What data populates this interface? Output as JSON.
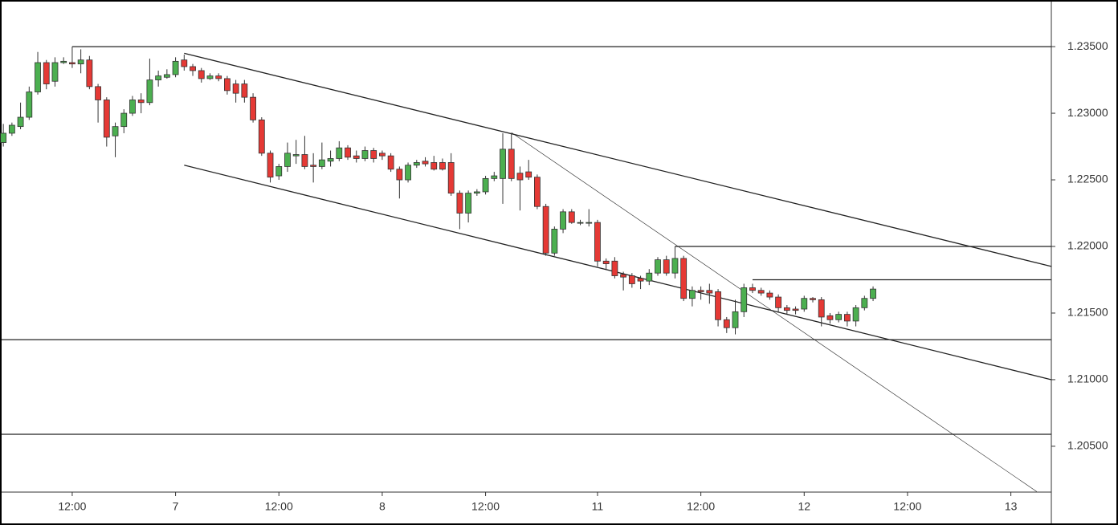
{
  "chart_data": {
    "type": "candlestick",
    "up_color": "#4caf50",
    "down_color": "#e53935",
    "x": [
      0,
      1,
      2,
      3,
      4,
      5,
      6,
      7,
      8,
      9,
      10,
      11,
      12,
      13,
      14,
      15,
      16,
      17,
      18,
      19,
      20,
      21,
      22,
      23,
      24,
      25,
      26,
      27,
      28,
      29,
      30,
      31,
      32,
      33,
      34,
      35,
      36,
      37,
      38,
      39,
      40,
      41,
      42,
      43,
      44,
      45,
      46,
      47,
      48,
      49,
      50,
      51,
      52,
      53,
      54,
      55,
      56,
      57,
      58,
      59,
      60,
      61,
      62,
      63,
      64,
      65,
      66,
      67,
      68,
      69,
      70,
      71,
      72,
      73,
      74,
      75,
      76,
      77,
      78,
      79,
      80,
      81,
      82,
      83,
      84,
      85,
      86,
      87,
      88,
      89,
      90,
      91,
      92,
      93,
      94,
      95,
      96,
      97,
      98,
      99,
      100,
      101
    ],
    "open": [
      1.2278,
      1.2285,
      1.229,
      1.2297,
      1.2316,
      1.2338,
      1.2324,
      1.2338,
      1.2338,
      1.2337,
      1.234,
      1.232,
      1.231,
      1.2283,
      1.229,
      1.23,
      1.231,
      1.2308,
      1.2325,
      1.2327,
      1.2329,
      1.234,
      1.2335,
      1.2332,
      1.2326,
      1.2328,
      1.2326,
      1.2322,
      1.2322,
      1.2312,
      1.2295,
      1.227,
      1.2253,
      1.226,
      1.2268,
      1.2269,
      1.2261,
      1.226,
      1.2264,
      1.2266,
      1.2274,
      1.2268,
      1.2266,
      1.2272,
      1.227,
      1.2268,
      1.2258,
      1.225,
      1.2261,
      1.2264,
      1.2263,
      1.2263,
      1.2263,
      1.224,
      1.2225,
      1.224,
      1.2241,
      1.2251,
      1.2251,
      1.2273,
      1.2255,
      1.2256,
      1.2252,
      1.223,
      1.2195,
      1.2213,
      1.2226,
      1.2218,
      1.2218,
      1.2218,
      1.2189,
      1.2189,
      1.2179,
      1.2178,
      1.2176,
      1.2174,
      1.218,
      1.219,
      1.218,
      1.2191,
      1.2161,
      1.2167,
      1.2167,
      1.2166,
      1.2145,
      1.2139,
      1.2151,
      1.2169,
      1.2167,
      1.2165,
      1.2162,
      1.2154,
      1.2153,
      1.2153,
      1.2161,
      1.216,
      1.2148,
      1.2145,
      1.2149,
      1.2144,
      1.2154,
      1.2161
    ],
    "high": [
      1.2292,
      1.2293,
      1.2308,
      1.232,
      1.2346,
      1.234,
      1.2342,
      1.2342,
      1.235,
      1.2348,
      1.2343,
      1.2322,
      1.2312,
      1.2293,
      1.2303,
      1.2313,
      1.2315,
      1.2341,
      1.2332,
      1.2333,
      1.2342,
      1.2344,
      1.2337,
      1.2334,
      1.233,
      1.233,
      1.2328,
      1.2325,
      1.2325,
      1.2315,
      1.2297,
      1.2272,
      1.2262,
      1.2278,
      1.228,
      1.2283,
      1.227,
      1.2278,
      1.2272,
      1.2279,
      1.2276,
      1.2272,
      1.2275,
      1.2274,
      1.2272,
      1.227,
      1.226,
      1.2263,
      1.2265,
      1.2267,
      1.2268,
      1.2266,
      1.227,
      1.2242,
      1.2242,
      1.2243,
      1.2253,
      1.2256,
      1.2285,
      1.2285,
      1.226,
      1.2265,
      1.2254,
      1.2232,
      1.2215,
      1.2228,
      1.2228,
      1.222,
      1.2228,
      1.222,
      1.2191,
      1.2192,
      1.2181,
      1.218,
      1.2178,
      1.2183,
      1.2192,
      1.2193,
      1.22,
      1.2193,
      1.217,
      1.217,
      1.2172,
      1.2168,
      1.2147,
      1.216,
      1.2172,
      1.2172,
      1.2169,
      1.2167,
      1.2164,
      1.2156,
      1.2155,
      1.2163,
      1.2162,
      1.2162,
      1.215,
      1.2151,
      1.2151,
      1.2156,
      1.2163,
      1.217
    ],
    "low": [
      1.2275,
      1.2283,
      1.2288,
      1.2295,
      1.2314,
      1.2318,
      1.232,
      1.2337,
      1.2334,
      1.233,
      1.2318,
      1.2293,
      1.2275,
      1.2267,
      1.2285,
      1.2298,
      1.23,
      1.2306,
      1.232,
      1.2326,
      1.2327,
      1.2332,
      1.2328,
      1.2323,
      1.2325,
      1.2324,
      1.2314,
      1.2308,
      1.2308,
      1.2293,
      1.2268,
      1.2248,
      1.225,
      1.2256,
      1.2262,
      1.2258,
      1.2248,
      1.2258,
      1.226,
      1.2264,
      1.2265,
      1.2263,
      1.2264,
      1.2263,
      1.2265,
      1.2256,
      1.2236,
      1.2248,
      1.2259,
      1.226,
      1.2257,
      1.2257,
      1.2238,
      1.2213,
      1.2218,
      1.2238,
      1.2239,
      1.2249,
      1.2232,
      1.2249,
      1.2227,
      1.225,
      1.2228,
      1.2193,
      1.2193,
      1.221,
      1.2217,
      1.2216,
      1.2215,
      1.2185,
      1.2183,
      1.2176,
      1.2167,
      1.2169,
      1.2168,
      1.2171,
      1.2178,
      1.2178,
      1.2176,
      1.2159,
      1.2155,
      1.216,
      1.2157,
      1.214,
      1.2135,
      1.2134,
      1.2147,
      1.2165,
      1.2163,
      1.216,
      1.2151,
      1.2149,
      1.2149,
      1.2151,
      1.2158,
      1.214,
      1.2142,
      1.2143,
      1.214,
      1.214,
      1.2152,
      1.2159
    ],
    "close": [
      1.2285,
      1.2291,
      1.2297,
      1.2316,
      1.2338,
      1.2322,
      1.2338,
      1.2339,
      1.2337,
      1.234,
      1.232,
      1.231,
      1.2282,
      1.229,
      1.23,
      1.231,
      1.2308,
      1.2325,
      1.2328,
      1.2329,
      1.2339,
      1.2335,
      1.2332,
      1.2326,
      1.2328,
      1.2326,
      1.2317,
      1.2315,
      1.2312,
      1.2295,
      1.227,
      1.2252,
      1.226,
      1.227,
      1.2269,
      1.226,
      1.226,
      1.2265,
      1.2266,
      1.2274,
      1.2267,
      1.2266,
      1.2272,
      1.2266,
      1.2268,
      1.2258,
      1.225,
      1.2261,
      1.2263,
      1.2262,
      1.2258,
      1.2258,
      1.224,
      1.2225,
      1.224,
      1.2241,
      1.2251,
      1.2253,
      1.2273,
      1.2251,
      1.225,
      1.2252,
      1.223,
      1.2195,
      1.2213,
      1.2226,
      1.2218,
      1.2218,
      1.2218,
      1.2189,
      1.2187,
      1.2178,
      1.2177,
      1.2172,
      1.2174,
      1.218,
      1.219,
      1.218,
      1.2191,
      1.2161,
      1.2167,
      1.2166,
      1.2165,
      1.2145,
      1.2139,
      1.2151,
      1.2169,
      1.2167,
      1.2165,
      1.2162,
      1.2154,
      1.2152,
      1.2152,
      1.2161,
      1.216,
      1.2147,
      1.2145,
      1.2149,
      1.2144,
      1.2154,
      1.2161,
      1.2168
    ],
    "xlim": [
      -0.2,
      121.7
    ],
    "ylim": [
      1.20156,
      1.23838
    ],
    "xticks": [
      {
        "value": 8,
        "label": "12:00"
      },
      {
        "value": 20,
        "label": "7"
      },
      {
        "value": 32,
        "label": "12:00"
      },
      {
        "value": 44,
        "label": "8"
      },
      {
        "value": 56,
        "label": "12:00"
      },
      {
        "value": 69,
        "label": "11"
      },
      {
        "value": 81,
        "label": "12:00"
      },
      {
        "value": 93,
        "label": "12"
      },
      {
        "value": 105,
        "label": "12:00"
      },
      {
        "value": 117,
        "label": "13"
      }
    ],
    "yticks": [
      {
        "value": 1.235,
        "label": "1.23500"
      },
      {
        "value": 1.23,
        "label": "1.23000"
      },
      {
        "value": 1.225,
        "label": "1.22500"
      },
      {
        "value": 1.22,
        "label": "1.22000"
      },
      {
        "value": 1.215,
        "label": "1.21500"
      },
      {
        "value": 1.21,
        "label": "1.21000"
      },
      {
        "value": 1.205,
        "label": "1.20500"
      }
    ],
    "horizontal_lines": [
      {
        "y": 1.235,
        "from": 8
      },
      {
        "y": 1.22,
        "from": 78
      },
      {
        "y": 1.2175,
        "from": 87
      },
      {
        "y": 1.213
      },
      {
        "y": 1.2059
      }
    ],
    "trend_lines": [
      {
        "points": [
          [
            21,
            1.2345
          ],
          [
            121.7,
            1.2185
          ]
        ],
        "width": 1.3
      },
      {
        "points": [
          [
            21,
            1.2261
          ],
          [
            121.7,
            1.21
          ]
        ],
        "width": 1.3
      },
      {
        "points": [
          [
            59,
            1.22855
          ],
          [
            120,
            1.2016
          ]
        ],
        "width": 0.6
      }
    ]
  }
}
